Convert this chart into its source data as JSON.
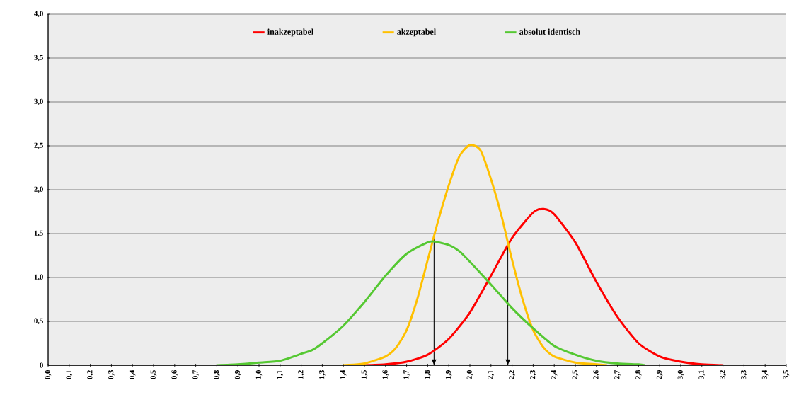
{
  "chart_data": {
    "type": "line",
    "series": [
      {
        "name": "inakzeptabel",
        "color": "#ff0000",
        "x": [
          1.5,
          1.6,
          1.7,
          1.8,
          1.9,
          2.0,
          2.1,
          2.2,
          2.3,
          2.35,
          2.4,
          2.5,
          2.6,
          2.7,
          2.8,
          2.9,
          3.0,
          3.1,
          3.2
        ],
        "values": [
          0,
          0.01,
          0.04,
          0.12,
          0.3,
          0.6,
          1.02,
          1.45,
          1.74,
          1.78,
          1.72,
          1.4,
          0.95,
          0.55,
          0.25,
          0.1,
          0.04,
          0.01,
          0
        ]
      },
      {
        "name": "akzeptabel",
        "color": "#ffc000",
        "x": [
          1.4,
          1.5,
          1.6,
          1.65,
          1.7,
          1.75,
          1.8,
          1.85,
          1.9,
          1.95,
          2.0,
          2.05,
          2.1,
          2.15,
          2.2,
          2.25,
          2.3,
          2.35,
          2.4,
          2.5,
          2.6,
          2.65
        ],
        "values": [
          0,
          0.02,
          0.1,
          0.2,
          0.4,
          0.75,
          1.2,
          1.65,
          2.05,
          2.38,
          2.51,
          2.45,
          2.12,
          1.7,
          1.2,
          0.75,
          0.4,
          0.2,
          0.1,
          0.03,
          0.01,
          0
        ]
      },
      {
        "name": "absolut identisch",
        "color": "#55c832",
        "x": [
          0.8,
          0.9,
          1.0,
          1.1,
          1.2,
          1.25,
          1.3,
          1.4,
          1.5,
          1.6,
          1.7,
          1.8,
          1.83,
          1.9,
          1.95,
          2.0,
          2.1,
          2.2,
          2.3,
          2.4,
          2.5,
          2.6,
          2.7,
          2.8,
          2.83
        ],
        "values": [
          0,
          0.01,
          0.03,
          0.05,
          0.13,
          0.17,
          0.25,
          0.45,
          0.72,
          1.02,
          1.27,
          1.4,
          1.41,
          1.37,
          1.3,
          1.18,
          0.92,
          0.65,
          0.42,
          0.22,
          0.12,
          0.05,
          0.02,
          0.01,
          0
        ]
      }
    ],
    "xlim": [
      0,
      3.5
    ],
    "xticks": [
      {
        "value": 0,
        "label": "0,0"
      },
      {
        "value": 0.1,
        "label": "0,1"
      },
      {
        "value": 0.2,
        "label": "0,2"
      },
      {
        "value": 0.3,
        "label": "0,3"
      },
      {
        "value": 0.4,
        "label": "0,4"
      },
      {
        "value": 0.5,
        "label": "0,5"
      },
      {
        "value": 0.6,
        "label": "0,6"
      },
      {
        "value": 0.7,
        "label": "0,7"
      },
      {
        "value": 0.8,
        "label": "0,8"
      },
      {
        "value": 0.9,
        "label": "0,9"
      },
      {
        "value": 1.0,
        "label": "1,0"
      },
      {
        "value": 1.1,
        "label": "1,1"
      },
      {
        "value": 1.2,
        "label": "1,2"
      },
      {
        "value": 1.3,
        "label": "1,3"
      },
      {
        "value": 1.4,
        "label": "1,4"
      },
      {
        "value": 1.5,
        "label": "1,5"
      },
      {
        "value": 1.6,
        "label": "1,6"
      },
      {
        "value": 1.7,
        "label": "1,7"
      },
      {
        "value": 1.8,
        "label": "1,8"
      },
      {
        "value": 1.9,
        "label": "1,9"
      },
      {
        "value": 2.0,
        "label": "2,0"
      },
      {
        "value": 2.1,
        "label": "2,1"
      },
      {
        "value": 2.2,
        "label": "2,2"
      },
      {
        "value": 2.3,
        "label": "2,3"
      },
      {
        "value": 2.4,
        "label": "2,4"
      },
      {
        "value": 2.5,
        "label": "2,5"
      },
      {
        "value": 2.6,
        "label": "2,6"
      },
      {
        "value": 2.7,
        "label": "2,7"
      },
      {
        "value": 2.8,
        "label": "2,8"
      },
      {
        "value": 2.9,
        "label": "2,9"
      },
      {
        "value": 3.0,
        "label": "3,0"
      },
      {
        "value": 3.1,
        "label": "3,1"
      },
      {
        "value": 3.2,
        "label": "3,2"
      },
      {
        "value": 3.3,
        "label": "3,3"
      },
      {
        "value": 3.4,
        "label": "3,4"
      },
      {
        "value": 3.5,
        "label": "3,5"
      }
    ],
    "ylim": [
      0,
      4
    ],
    "yticks": [
      0,
      {
        "value": 0.5,
        "label": "0,5"
      },
      {
        "value": 1,
        "label": "1,0"
      },
      {
        "value": 1.5,
        "label": "1,5"
      },
      {
        "value": 2,
        "label": "2,0"
      },
      {
        "value": 2.5,
        "label": "2,5"
      },
      {
        "value": 3,
        "label": "3,0"
      },
      {
        "value": 3.5,
        "label": "3,5"
      },
      {
        "value": 4,
        "label": "4,0"
      }
    ],
    "ref_lines": [
      {
        "axis": "x",
        "value": 1.83,
        "color": "#000000"
      },
      {
        "axis": "x",
        "value": 2.18,
        "color": "#000000"
      }
    ],
    "grid": "y",
    "legend": "top",
    "marker": "none",
    "line_style": "solid"
  }
}
